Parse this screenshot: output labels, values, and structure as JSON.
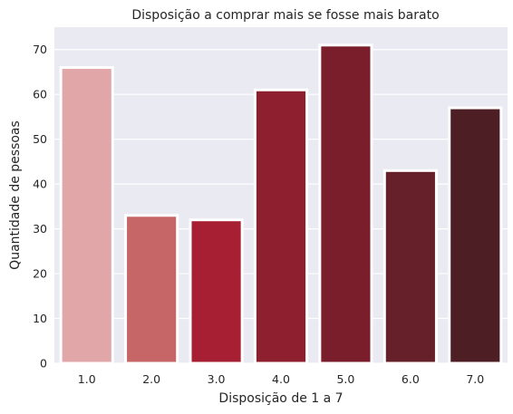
{
  "chart_data": {
    "type": "bar",
    "title": "Disposição a comprar mais se fosse mais barato",
    "xlabel": "Disposição de 1 a 7",
    "ylabel": "Quantidade de pessoas",
    "categories": [
      "1.0",
      "2.0",
      "3.0",
      "4.0",
      "5.0",
      "6.0",
      "7.0"
    ],
    "values": [
      66,
      33,
      32,
      61,
      71,
      43,
      57
    ],
    "ylim": [
      0,
      75
    ],
    "yticks": [
      0,
      10,
      20,
      30,
      40,
      50,
      60,
      70
    ],
    "grid": true,
    "colors": [
      "#e1a6a8",
      "#c76666",
      "#a71f32",
      "#8d1f2e",
      "#7b1e2b",
      "#66202a",
      "#4e1e25"
    ],
    "background": "#eaeaf2"
  }
}
